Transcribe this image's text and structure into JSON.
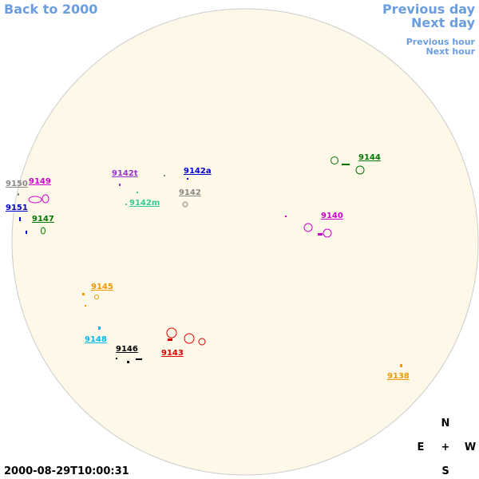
{
  "nav": {
    "back": "Back to 2000",
    "previous_day": "Previous day",
    "next_day": "Next day",
    "previous_hour": "Previous hour",
    "next_hour": "Next hour"
  },
  "regions": [
    {
      "label": "9150",
      "color": "#888888"
    },
    {
      "label": "9149",
      "color": "#cc00cc"
    },
    {
      "label": "9151",
      "color": "#0000cc"
    },
    {
      "label": "9147",
      "color": "#007700"
    },
    {
      "label": "9142t",
      "color": "#9933cc"
    },
    {
      "label": "9142a",
      "color": "#0000cc"
    },
    {
      "label": "9142",
      "color": "#888888"
    },
    {
      "label": "9142m",
      "color": "#33cc99"
    },
    {
      "label": "9144",
      "color": "#007700"
    },
    {
      "label": "9140",
      "color": "#cc00cc"
    },
    {
      "label": "9145",
      "color": "#ee9900"
    },
    {
      "label": "9148",
      "color": "#00bbee"
    },
    {
      "label": "9146",
      "color": "#000000"
    },
    {
      "label": "9143",
      "color": "#dd0000"
    },
    {
      "label": "9138",
      "color": "#ee9900"
    }
  ],
  "timestamp": "2000-08-29T10:00:31",
  "compass": {
    "north": "N",
    "east": "E",
    "center": "+",
    "west": "W",
    "south": "S"
  }
}
